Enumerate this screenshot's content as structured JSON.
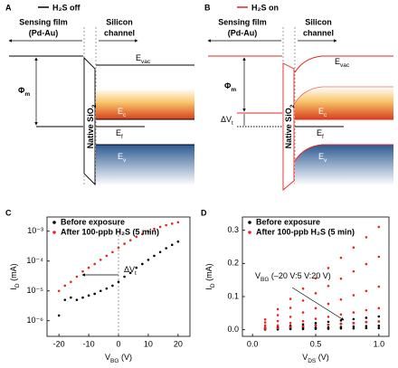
{
  "diagrams": [
    {
      "label": "A",
      "legend": "H₂S off",
      "film": [
        "Sensing film",
        "(Pd-Au)"
      ],
      "channel": [
        "Silicon",
        "channel"
      ],
      "phi": {
        "main": "Φ",
        "sub": "m"
      },
      "oxide": {
        "main": "Native SiO",
        "sub": "2"
      },
      "levels": [
        {
          "main": "E",
          "sub": "vac"
        },
        {
          "main": "E",
          "sub": "c"
        },
        {
          "main": "E",
          "sub": "f"
        },
        {
          "main": "E",
          "sub": "v"
        }
      ]
    },
    {
      "label": "B",
      "legend": "H₂S on",
      "film": [
        "Sensing film",
        "(Pd-Au)"
      ],
      "channel": [
        "Silicon",
        "channel"
      ],
      "phi": {
        "main": "Φ",
        "sub": "m"
      },
      "oxide": {
        "main": "Native SiO",
        "sub": "2"
      },
      "delta": {
        "main": "ΔV",
        "sub": "t"
      },
      "levels": [
        {
          "main": "E",
          "sub": "vac"
        },
        {
          "main": "E",
          "sub": "c"
        },
        {
          "main": "E",
          "sub": "f"
        },
        {
          "main": "E",
          "sub": "v"
        }
      ]
    }
  ],
  "chart_data": [
    {
      "type": "scatter",
      "label": "C",
      "yscale": "log",
      "xlabel": {
        "main": "V",
        "sub": "BG",
        "rest": " (V)"
      },
      "ylabel": {
        "main": "I",
        "sub": "D",
        "rest": " (mA)"
      },
      "annotation": {
        "main": "ΔV",
        "sub": "t"
      },
      "x": [
        -20,
        -18,
        -16,
        -14,
        -12,
        -10,
        -8,
        -6,
        -4,
        -2,
        0,
        2,
        4,
        6,
        8,
        10,
        12,
        14,
        16,
        18,
        20
      ],
      "xlim": [
        -24,
        24
      ],
      "xticks": [
        -20,
        -10,
        0,
        10,
        20
      ],
      "ylim": [
        3e-07,
        0.003
      ],
      "yticks": [
        {
          "value": 1e-06,
          "label": "10⁻⁶"
        },
        {
          "value": 1e-05,
          "label": "10⁻⁵"
        },
        {
          "value": 0.0001,
          "label": "10⁻⁴"
        },
        {
          "value": 0.001,
          "label": "10⁻³"
        }
      ],
      "series": [
        {
          "name": "Before exposure",
          "color": "#000000",
          "values": [
            1.5e-06,
            5e-06,
            6e-06,
            5e-06,
            6e-06,
            7e-06,
            8e-06,
            1e-05,
            1.2e-05,
            1.5e-05,
            2e-05,
            3e-05,
            4e-05,
            6e-05,
            8e-05,
            0.00011,
            0.00015,
            0.0002,
            0.00027,
            0.00035,
            0.00045
          ]
        },
        {
          "name": "After 100-ppb H₂S (5 min)",
          "color": "#e8251f",
          "values": [
            1e-05,
            1.5e-05,
            2e-05,
            3e-05,
            4.5e-05,
            6e-05,
            8e-05,
            0.00011,
            0.00015,
            0.0002,
            0.00028,
            0.00038,
            0.0005,
            0.00065,
            0.0008,
            0.001,
            0.0012,
            0.0014,
            0.0016,
            0.0018,
            0.002
          ]
        }
      ]
    },
    {
      "type": "scatter",
      "label": "D",
      "xlabel": {
        "main": "V",
        "sub": "DS",
        "rest": " (V)"
      },
      "ylabel": {
        "main": "I",
        "sub": "D",
        "rest": " (mA)"
      },
      "annotation": {
        "main": "V",
        "sub": "BG",
        "rest": " (–20 V:5 V:20 V)"
      },
      "xlim": [
        -0.08,
        1.08
      ],
      "xticks": [
        {
          "value": 0,
          "label": "0.0"
        },
        {
          "value": 0.5,
          "label": "0.5"
        },
        {
          "value": 1,
          "label": "1.0"
        }
      ],
      "ylim": [
        -0.02,
        0.34
      ],
      "yticks": [
        {
          "value": 0,
          "label": "0.0"
        },
        {
          "value": 0.1,
          "label": "0.1"
        },
        {
          "value": 0.2,
          "label": "0.2"
        },
        {
          "value": 0.3,
          "label": "0.3"
        }
      ],
      "series": [
        {
          "name": "Before exposure",
          "color": "#000000",
          "x": [
            0.1,
            0.2,
            0.3,
            0.4,
            0.5,
            0.6,
            0.7,
            0.8,
            0.9,
            1.0,
            0.1,
            0.2,
            0.3,
            0.4,
            0.5,
            0.6,
            0.7,
            0.8,
            0.9,
            1.0,
            0.1,
            0.2,
            0.3,
            0.4,
            0.5,
            0.6,
            0.7,
            0.8,
            0.9,
            1.0,
            0.1,
            0.2,
            0.3,
            0.4,
            0.5,
            0.6,
            0.7,
            0.8,
            0.9,
            1.0
          ],
          "values": [
            0.004,
            0.008,
            0.012,
            0.016,
            0.02,
            0.024,
            0.028,
            0.032,
            0.036,
            0.04,
            0.003,
            0.005,
            0.008,
            0.01,
            0.013,
            0.015,
            0.018,
            0.02,
            0.023,
            0.025,
            0.001,
            0.002,
            0.004,
            0.005,
            0.006,
            0.007,
            0.008,
            0.01,
            0.011,
            0.012,
            0.001,
            0.001,
            0.002,
            0.002,
            0.003,
            0.003,
            0.004,
            0.004,
            0.005,
            0.005
          ]
        },
        {
          "name": "After 100-ppb H₂S (5 min)",
          "color": "#e8251f",
          "x": [
            0.1,
            0.2,
            0.3,
            0.4,
            0.5,
            0.6,
            0.7,
            0.8,
            0.9,
            1.0,
            0.1,
            0.2,
            0.3,
            0.4,
            0.5,
            0.6,
            0.7,
            0.8,
            0.9,
            1.0,
            0.1,
            0.2,
            0.3,
            0.4,
            0.5,
            0.6,
            0.7,
            0.8,
            0.9,
            1.0,
            0.1,
            0.2,
            0.3,
            0.4,
            0.5,
            0.6,
            0.7,
            0.8,
            0.9,
            1.0,
            0.1,
            0.2,
            0.3,
            0.4,
            0.5,
            0.6,
            0.7,
            0.8,
            0.9,
            1.0
          ],
          "values": [
            0.031,
            0.062,
            0.093,
            0.124,
            0.155,
            0.186,
            0.217,
            0.248,
            0.279,
            0.31,
            0.022,
            0.044,
            0.066,
            0.088,
            0.11,
            0.132,
            0.154,
            0.176,
            0.198,
            0.22,
            0.013,
            0.026,
            0.039,
            0.052,
            0.065,
            0.078,
            0.091,
            0.104,
            0.117,
            0.13,
            0.007,
            0.013,
            0.02,
            0.026,
            0.033,
            0.039,
            0.046,
            0.052,
            0.059,
            0.065,
            0.003,
            0.005,
            0.008,
            0.01,
            0.013,
            0.015,
            0.018,
            0.02,
            0.023,
            0.025
          ]
        }
      ]
    }
  ]
}
